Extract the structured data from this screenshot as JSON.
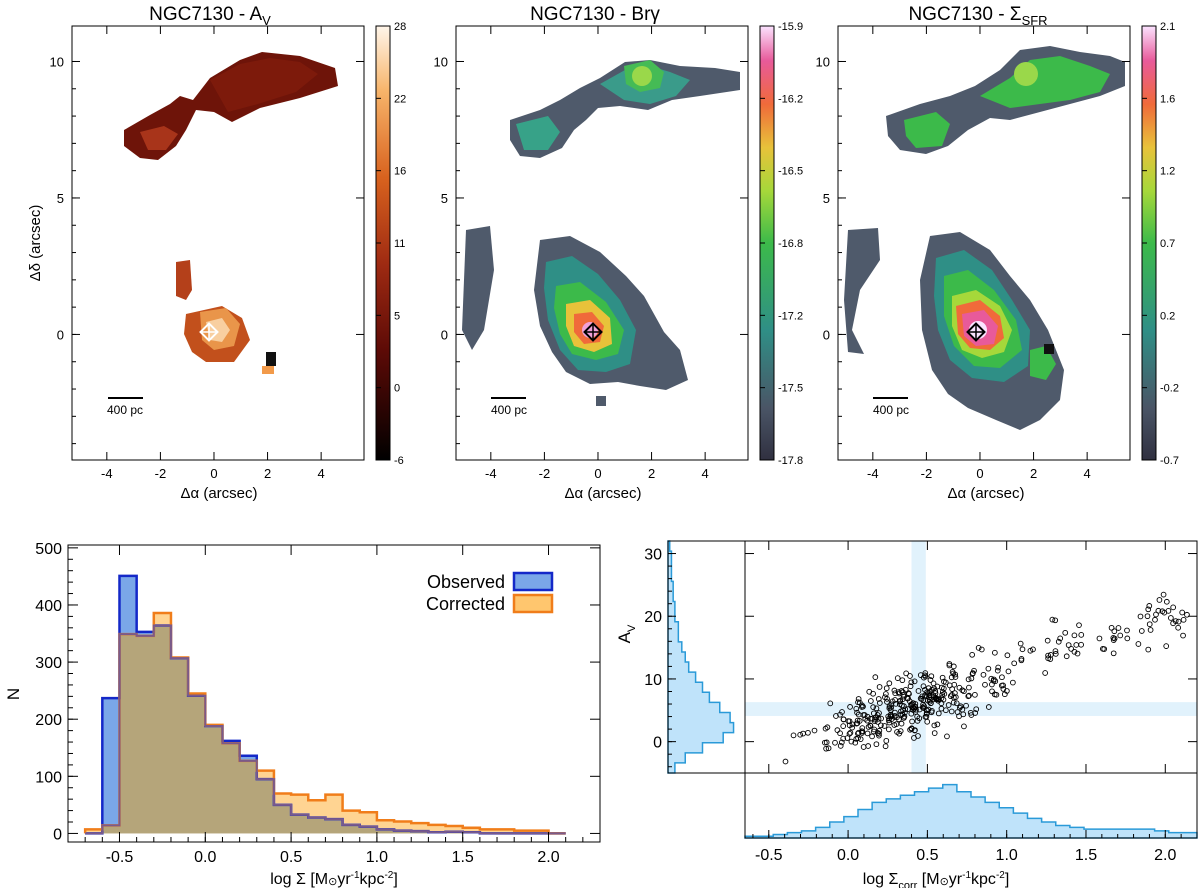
{
  "maps": [
    {
      "title": "NGC7130 - A",
      "title_sub": "V",
      "xlabel": "Δα (arcsec)",
      "ylabel": "Δδ (arcsec)",
      "xticks": [
        "-4",
        "-2",
        "0",
        "2",
        "4"
      ],
      "yticks": [
        "0",
        "5",
        "10"
      ],
      "scalebar": "400 pc",
      "colorbar": {
        "ticks": [
          "28",
          "22",
          "16",
          "11",
          "5",
          "0",
          "-6"
        ],
        "range": [
          -6,
          28
        ],
        "colormap": "hot"
      },
      "xlim": [
        -5.3,
        5.6
      ],
      "ylim": [
        -4.6,
        11.3
      ]
    },
    {
      "title": "NGC7130 - Brγ",
      "xlabel": "Δα (arcsec)",
      "xticks": [
        "-4",
        "-2",
        "0",
        "2",
        "4"
      ],
      "yticks": [
        "0",
        "5",
        "10"
      ],
      "scalebar": "400 pc",
      "colorbar": {
        "ticks": [
          "-15.9",
          "-16.2",
          "-16.5",
          "-16.8",
          "-17.2",
          "-17.5",
          "-17.8"
        ],
        "range": [
          -17.8,
          -15.9
        ],
        "colormap": "cubehelix-like"
      },
      "xlim": [
        -5.3,
        5.6
      ],
      "ylim": [
        -4.6,
        11.3
      ]
    },
    {
      "title": "NGC7130 - Σ",
      "title_sub": "SFR",
      "xlabel": "Δα (arcsec)",
      "xticks": [
        "-4",
        "-2",
        "0",
        "2",
        "4"
      ],
      "yticks": [
        "0",
        "5",
        "10"
      ],
      "scalebar": "400 pc",
      "colorbar": {
        "ticks": [
          "2.1",
          "1.6",
          "1.2",
          "0.7",
          "0.2",
          "-0.2",
          "-0.7"
        ],
        "range": [
          -0.7,
          2.1
        ],
        "colormap": "cubehelix-like"
      },
      "xlim": [
        -5.3,
        5.6
      ],
      "ylim": [
        -4.6,
        11.3
      ]
    }
  ],
  "histogram": {
    "type": "bar",
    "xlabel": "log Σ [M",
    "xlabel_unit": "yr",
    "xlabel_tail": "kpc",
    "ylabel": "N",
    "xlim": [
      -0.8,
      2.3
    ],
    "ylim": [
      -15,
      505
    ],
    "xticks": [
      "-0.5",
      "0.0",
      "0.5",
      "1.0",
      "1.5",
      "2.0"
    ],
    "yticks": [
      "0",
      "100",
      "200",
      "300",
      "400",
      "500"
    ],
    "bin_edges": [
      -0.7,
      -0.6,
      -0.5,
      -0.4,
      -0.3,
      -0.2,
      -0.1,
      0.0,
      0.1,
      0.2,
      0.3,
      0.4,
      0.5,
      0.6,
      0.7,
      0.8,
      0.9,
      1.0,
      1.1,
      1.2,
      1.3,
      1.4,
      1.5,
      1.6,
      1.7,
      1.8,
      1.9,
      2.0,
      2.1
    ],
    "series": [
      {
        "name": "Observed",
        "values": [
          0,
          237,
          451,
          353,
          364,
          307,
          241,
          188,
          162,
          136,
          95,
          50,
          33,
          28,
          25,
          15,
          12,
          7,
          5,
          4,
          2,
          3,
          2,
          0,
          0,
          0,
          0,
          0
        ],
        "fill": "#7aa7e8",
        "stroke": "#1428c8"
      },
      {
        "name": "Corrected",
        "values": [
          7,
          14,
          349,
          346,
          386,
          308,
          245,
          190,
          158,
          127,
          110,
          70,
          68,
          58,
          68,
          40,
          37,
          23,
          21,
          18,
          15,
          13,
          10,
          7,
          7,
          5,
          5,
          0
        ],
        "fill": "#ffc66e",
        "stroke": "#f07d1a"
      }
    ]
  },
  "scatter": {
    "type": "scatter",
    "xlabel": "log Σ",
    "xlabel_sub": "corr",
    "xlabel_unit": "[M",
    "xlabel_tail": "yr",
    "xlabel_end": "kpc",
    "ylabel": "A",
    "ylabel_sub": "V",
    "xlim": [
      -0.65,
      2.2
    ],
    "ylim": [
      -5,
      32
    ],
    "xticks": [
      "-0.5",
      "0.0",
      "0.5",
      "1.0",
      "1.5",
      "2.0"
    ],
    "yticks": [
      "0",
      "10",
      "20",
      "30"
    ],
    "hband_y": [
      4.1,
      6.3
    ],
    "vband_x": [
      0.4,
      0.49
    ],
    "trend": {
      "slope": 7.5,
      "intercept": 2.8,
      "n": 420,
      "seed": 7130
    },
    "hist_x_values": [
      0.1,
      0.1,
      0.2,
      0.3,
      0.4,
      0.6,
      0.9,
      1.2,
      1.6,
      2.0,
      2.2,
      2.4,
      2.6,
      2.8,
      3.0,
      2.6,
      2.3,
      2.0,
      1.7,
      1.4,
      1.1,
      0.9,
      0.7,
      0.6,
      0.5,
      0.5,
      0.5,
      0.5,
      0.5,
      0.4,
      0.3,
      0.3
    ],
    "hist_y_values": [
      0.2,
      0.5,
      1.0,
      1.6,
      1.9,
      1.8,
      1.5,
      1.2,
      1.0,
      0.8,
      0.6,
      0.5,
      0.4,
      0.3,
      0.3,
      0.2,
      0.2,
      0.15,
      0.15,
      0.1,
      0.1,
      0.1,
      0.05
    ]
  }
}
